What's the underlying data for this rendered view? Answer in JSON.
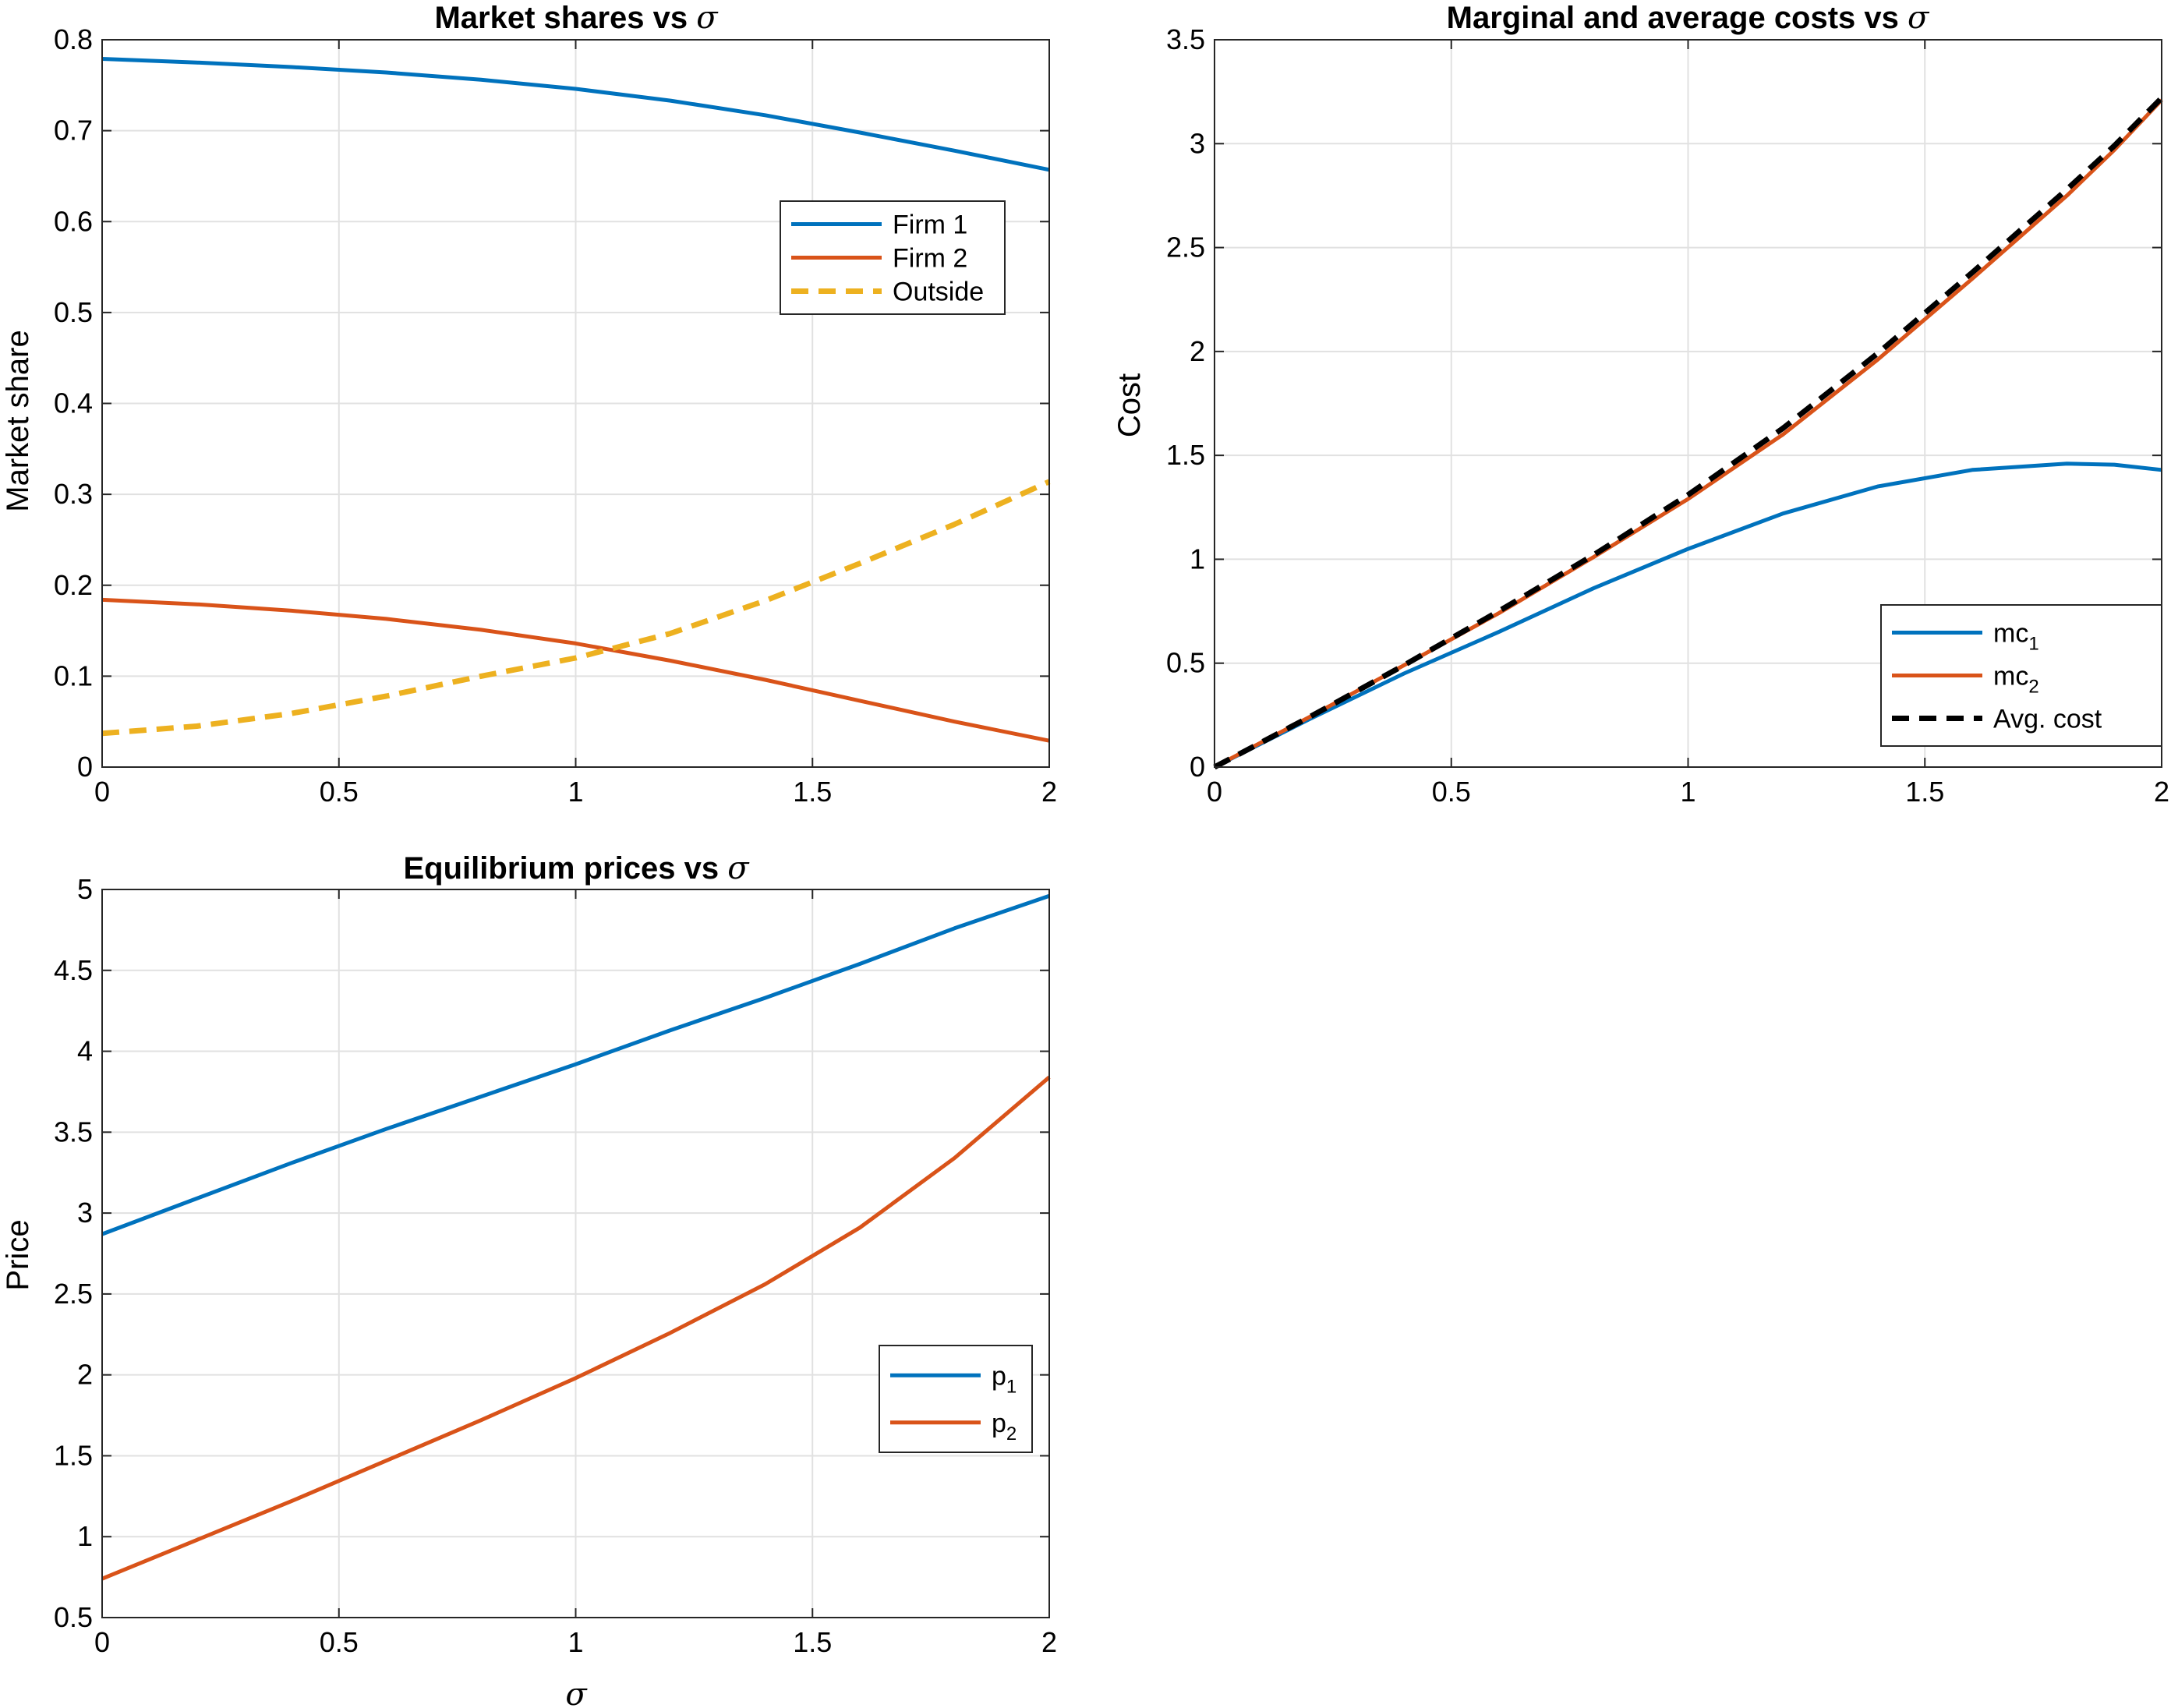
{
  "chart_data": [
    {
      "type": "line",
      "title": "Market shares vs σ",
      "title_text": "Market shares vs ",
      "title_symbol": "σ",
      "xlabel": "",
      "ylabel": "Market share",
      "xlim": [
        0,
        2
      ],
      "ylim": [
        0,
        0.8
      ],
      "xticks": [
        0,
        0.5,
        1,
        1.5,
        2
      ],
      "xtick_labels": [
        "0",
        "0.5",
        "1",
        "1.5",
        "2"
      ],
      "yticks": [
        0,
        0.1,
        0.2,
        0.3,
        0.4,
        0.5,
        0.6,
        0.7,
        0.8
      ],
      "ytick_labels": [
        "0",
        "0.1",
        "0.2",
        "0.3",
        "0.4",
        "0.5",
        "0.6",
        "0.7",
        "0.8"
      ],
      "grid": true,
      "legend_position": "upper-right",
      "x": [
        0,
        0.2,
        0.4,
        0.6,
        0.8,
        1.0,
        1.2,
        1.4,
        1.6,
        1.8,
        2.0
      ],
      "series": [
        {
          "name": "Firm 1",
          "color": "#0072BD",
          "dash": "solid",
          "values": [
            0.779,
            0.775,
            0.77,
            0.764,
            0.756,
            0.746,
            0.733,
            0.717,
            0.698,
            0.678,
            0.657
          ]
        },
        {
          "name": "Firm 2",
          "color": "#D95319",
          "dash": "solid",
          "values": [
            0.184,
            0.179,
            0.172,
            0.163,
            0.151,
            0.136,
            0.117,
            0.096,
            0.073,
            0.05,
            0.029
          ]
        },
        {
          "name": "Outside",
          "color": "#EDB120",
          "dash": "dashed",
          "values": [
            0.037,
            0.045,
            0.059,
            0.078,
            0.1,
            0.12,
            0.147,
            0.183,
            0.224,
            0.267,
            0.314
          ]
        }
      ]
    },
    {
      "type": "line",
      "title": "Marginal and average costs vs σ",
      "title_text": "Marginal and average costs vs ",
      "title_symbol": "σ",
      "xlabel": "",
      "ylabel": "Cost",
      "xlim": [
        0,
        2
      ],
      "ylim": [
        0,
        3.5
      ],
      "xticks": [
        0,
        0.5,
        1,
        1.5,
        2
      ],
      "xtick_labels": [
        "0",
        "0.5",
        "1",
        "1.5",
        "2"
      ],
      "yticks": [
        0,
        0.5,
        1,
        1.5,
        2,
        2.5,
        3,
        3.5
      ],
      "ytick_labels": [
        "0",
        "0.5",
        "1",
        "1.5",
        "2",
        "2.5",
        "3",
        "3.5"
      ],
      "grid": true,
      "legend_position": "lower-right",
      "x": [
        0,
        0.2,
        0.4,
        0.6,
        0.8,
        1.0,
        1.2,
        1.4,
        1.6,
        1.8,
        1.9,
        2.0
      ],
      "series": [
        {
          "name": "mc",
          "name_sub": "1",
          "color": "#0072BD",
          "dash": "solid",
          "values": [
            0,
            0.23,
            0.45,
            0.65,
            0.86,
            1.05,
            1.22,
            1.35,
            1.43,
            1.46,
            1.455,
            1.43
          ]
        },
        {
          "name": "mc",
          "name_sub": "2",
          "color": "#D95319",
          "dash": "solid",
          "values": [
            0,
            0.24,
            0.49,
            0.74,
            1.01,
            1.29,
            1.6,
            1.96,
            2.35,
            2.75,
            2.97,
            3.21
          ]
        },
        {
          "name": "Avg. cost",
          "color": "#000000",
          "dash": "dashed",
          "values": [
            0,
            0.24,
            0.49,
            0.75,
            1.02,
            1.31,
            1.63,
            1.99,
            2.38,
            2.78,
            2.99,
            3.22
          ]
        }
      ]
    },
    {
      "type": "line",
      "title": "Equilibrium prices vs σ",
      "title_text": "Equilibrium prices vs ",
      "title_symbol": "σ",
      "xlabel": "σ",
      "ylabel": "Price",
      "xlim": [
        0,
        2
      ],
      "ylim": [
        0.5,
        5
      ],
      "xticks": [
        0,
        0.5,
        1,
        1.5,
        2
      ],
      "xtick_labels": [
        "0",
        "0.5",
        "1",
        "1.5",
        "2"
      ],
      "yticks": [
        0.5,
        1,
        1.5,
        2,
        2.5,
        3,
        3.5,
        4,
        4.5,
        5
      ],
      "ytick_labels": [
        "0.5",
        "1",
        "1.5",
        "2",
        "2.5",
        "3",
        "3.5",
        "4",
        "4.5",
        "5"
      ],
      "grid": true,
      "legend_position": "lower-right",
      "x": [
        0,
        0.2,
        0.4,
        0.6,
        0.8,
        1.0,
        1.2,
        1.4,
        1.6,
        1.8,
        2.0
      ],
      "series": [
        {
          "name": "p",
          "name_sub": "1",
          "color": "#0072BD",
          "dash": "solid",
          "values": [
            2.87,
            3.09,
            3.31,
            3.52,
            3.72,
            3.92,
            4.13,
            4.33,
            4.54,
            4.76,
            4.96
          ]
        },
        {
          "name": "p",
          "name_sub": "2",
          "color": "#D95319",
          "dash": "solid",
          "values": [
            0.74,
            0.98,
            1.22,
            1.47,
            1.72,
            1.98,
            2.26,
            2.56,
            2.91,
            3.34,
            3.84
          ]
        }
      ]
    }
  ]
}
